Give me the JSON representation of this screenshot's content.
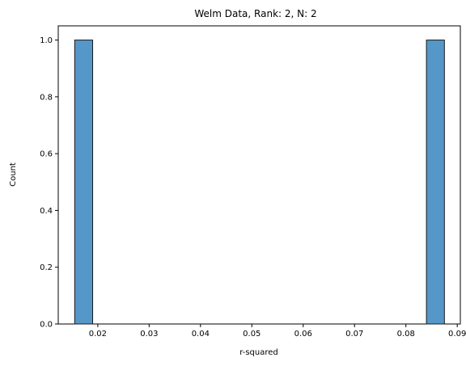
{
  "chart_data": {
    "type": "bar",
    "title": "Welm Data, Rank: 2, N: 2",
    "xlabel": "r-squared",
    "ylabel": "Count",
    "xlim": [
      0.0123,
      0.0906
    ],
    "ylim": [
      0,
      1.05
    ],
    "xticks": [
      "0.02",
      "0.03",
      "0.04",
      "0.05",
      "0.06",
      "0.07",
      "0.08",
      "0.09"
    ],
    "yticks": [
      "0.0",
      "0.2",
      "0.4",
      "0.6",
      "0.8",
      "1.0"
    ],
    "bars": [
      {
        "x0": 0.0155,
        "x1": 0.019,
        "count": 1
      },
      {
        "x0": 0.084,
        "x1": 0.0875,
        "count": 1
      }
    ],
    "bar_color": "#5597c9",
    "edge_color": "#1a1a1a",
    "grid": false
  }
}
